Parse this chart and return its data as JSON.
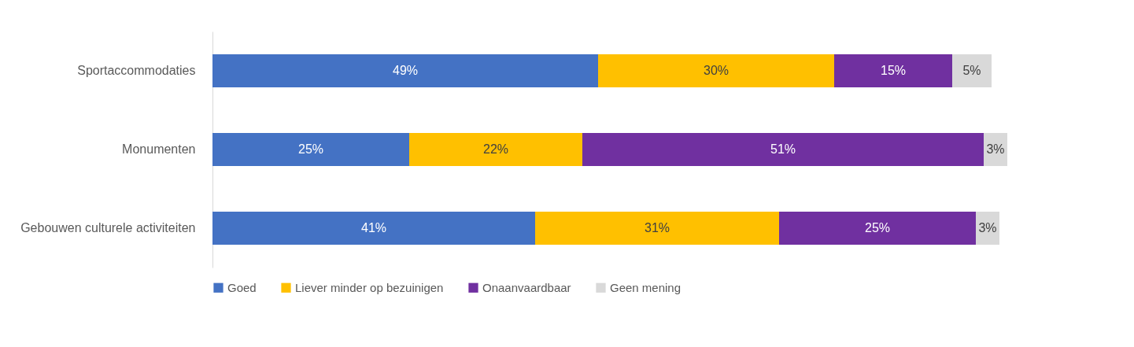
{
  "chart_data": {
    "type": "bar",
    "orientation": "horizontal",
    "stacked": true,
    "categories": [
      "Sportaccommodaties",
      "Monumenten",
      "Gebouwen culturele activiteiten"
    ],
    "series": [
      {
        "name": "Goed",
        "color": "#4472c4",
        "values": [
          49,
          25,
          41
        ],
        "value_labels": [
          "49%",
          "25%",
          "41%"
        ]
      },
      {
        "name": "Liever minder op bezuinigen",
        "color": "#ffc000",
        "values": [
          30,
          22,
          31
        ],
        "value_labels": [
          "30%",
          "22%",
          "31%"
        ]
      },
      {
        "name": "Onaanvaardbaar",
        "color": "#7030a0",
        "values": [
          15,
          51,
          25
        ],
        "value_labels": [
          "15%",
          "51%",
          "25%"
        ]
      },
      {
        "name": "Geen mening",
        "color": "#d9d9d9",
        "values": [
          5,
          3,
          3
        ],
        "value_labels": [
          "5%",
          "3%",
          "3%"
        ]
      }
    ],
    "legend": "bottom",
    "grid": false
  }
}
